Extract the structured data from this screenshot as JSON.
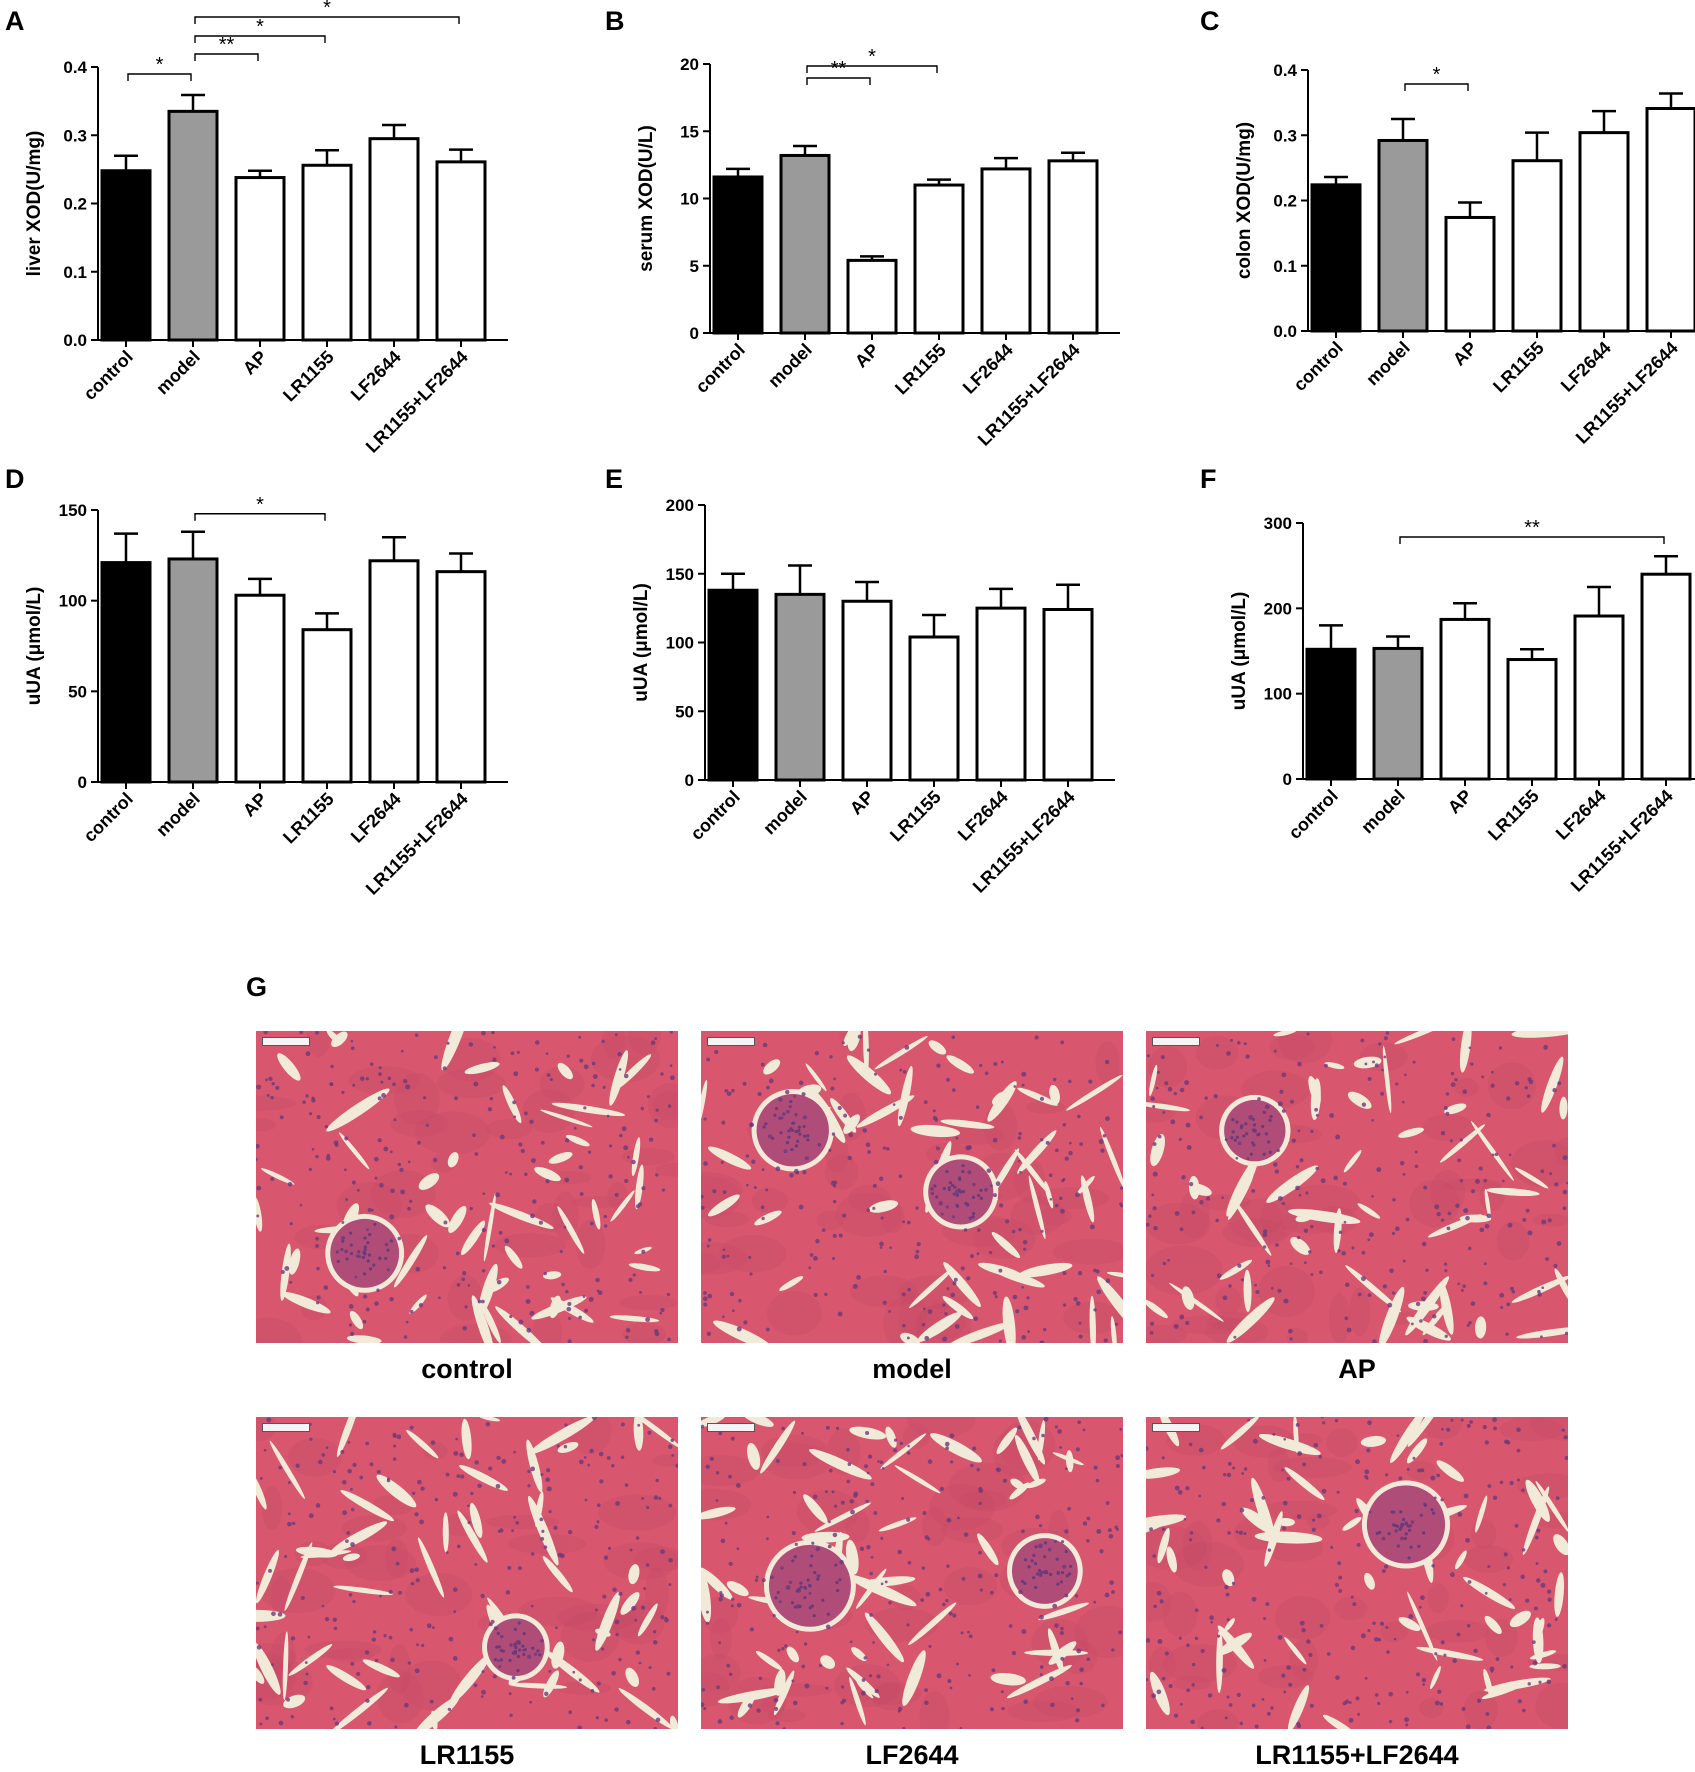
{
  "chart_data": [
    {
      "panel": "A",
      "type": "bar",
      "categories": [
        "control",
        "model",
        "AP",
        "LR1155",
        "LF2644",
        "LR1155+LF2644"
      ],
      "values": [
        0.248,
        0.335,
        0.238,
        0.256,
        0.295,
        0.261
      ],
      "errors": [
        0.022,
        0.024,
        0.01,
        0.022,
        0.02,
        0.018
      ],
      "ylabel": "liver XOD(U/mg)",
      "ylim": [
        0,
        0.4
      ],
      "yticks": [
        "0.0",
        "0.1",
        "0.2",
        "0.3",
        "0.4"
      ],
      "significance": [
        {
          "from": 0,
          "to": 1,
          "label": "*"
        },
        {
          "from": 1,
          "to": 2,
          "label": "**"
        },
        {
          "from": 1,
          "to": 3,
          "label": "*"
        },
        {
          "from": 1,
          "to": 5,
          "label": "*"
        }
      ]
    },
    {
      "panel": "B",
      "type": "bar",
      "categories": [
        "control",
        "model",
        "AP",
        "LR1155",
        "LF2644",
        "LR1155+LF2644"
      ],
      "values": [
        11.6,
        13.2,
        5.4,
        11.0,
        12.2,
        12.8
      ],
      "errors": [
        0.6,
        0.7,
        0.3,
        0.4,
        0.8,
        0.6
      ],
      "ylabel": "serum  XOD(U/L)",
      "ylim": [
        0,
        20
      ],
      "yticks": [
        "0",
        "5",
        "10",
        "15",
        "20"
      ],
      "significance": [
        {
          "from": 1,
          "to": 2,
          "label": "**"
        },
        {
          "from": 1,
          "to": 3,
          "label": "*"
        }
      ]
    },
    {
      "panel": "C",
      "type": "bar",
      "categories": [
        "control",
        "model",
        "AP",
        "LR1155",
        "LF2644",
        "LR1155+LF2644"
      ],
      "values": [
        0.224,
        0.292,
        0.174,
        0.261,
        0.304,
        0.341
      ],
      "errors": [
        0.012,
        0.033,
        0.023,
        0.043,
        0.033,
        0.023
      ],
      "ylabel": "colon XOD(U/mg)",
      "ylim": [
        0,
        0.4
      ],
      "yticks": [
        "0.0",
        "0.1",
        "0.2",
        "0.3",
        "0.4"
      ],
      "significance": [
        {
          "from": 1,
          "to": 2,
          "label": "*"
        }
      ]
    },
    {
      "panel": "D",
      "type": "bar",
      "categories": [
        "control",
        "model",
        "AP",
        "LR1155",
        "LF2644",
        "LR1155+LF2644"
      ],
      "values": [
        121,
        123,
        103,
        84,
        122,
        116
      ],
      "errors": [
        16,
        15,
        9,
        9,
        13,
        10
      ],
      "ylabel": "uUA (μmol/L)",
      "ylim": [
        0,
        150
      ],
      "yticks": [
        "0",
        "50",
        "100",
        "150"
      ],
      "significance": [
        {
          "from": 1,
          "to": 3,
          "label": "*"
        }
      ]
    },
    {
      "panel": "E",
      "type": "bar",
      "categories": [
        "control",
        "model",
        "AP",
        "LR1155",
        "LF2644",
        "LR1155+LF2644"
      ],
      "values": [
        138,
        135,
        130,
        104,
        125,
        124
      ],
      "errors": [
        12,
        21,
        14,
        16,
        14,
        18
      ],
      "ylabel": "uUA (μmol/L)",
      "ylim": [
        0,
        200
      ],
      "yticks": [
        "0",
        "50",
        "100",
        "150",
        "200"
      ],
      "significance": []
    },
    {
      "panel": "F",
      "type": "bar",
      "categories": [
        "control",
        "model",
        "AP",
        "LR1155",
        "LF2644",
        "LR1155+LF2644"
      ],
      "values": [
        152,
        153,
        187,
        140,
        191,
        240
      ],
      "errors": [
        28,
        14,
        19,
        12,
        34,
        21
      ],
      "ylabel": "uUA (μmol/L)",
      "ylim": [
        0,
        300
      ],
      "yticks": [
        "0",
        "100",
        "200",
        "300"
      ],
      "significance": [
        {
          "from": 1,
          "to": 5,
          "label": "**"
        }
      ]
    }
  ],
  "bar_colors": [
    "#000000",
    "#9a9a9a",
    "#ffffff",
    "#ffffff",
    "#ffffff",
    "#ffffff"
  ],
  "histology": {
    "panel": "G",
    "tissue_color": "#d8576e",
    "lumen_color": "#f2ead8",
    "nuclei_color": "#6a3a7a",
    "images": [
      {
        "label": "control"
      },
      {
        "label": "model"
      },
      {
        "label": "AP"
      },
      {
        "label": "LR1155"
      },
      {
        "label": "LF2644"
      },
      {
        "label": "LR1155+LF2644"
      }
    ]
  }
}
